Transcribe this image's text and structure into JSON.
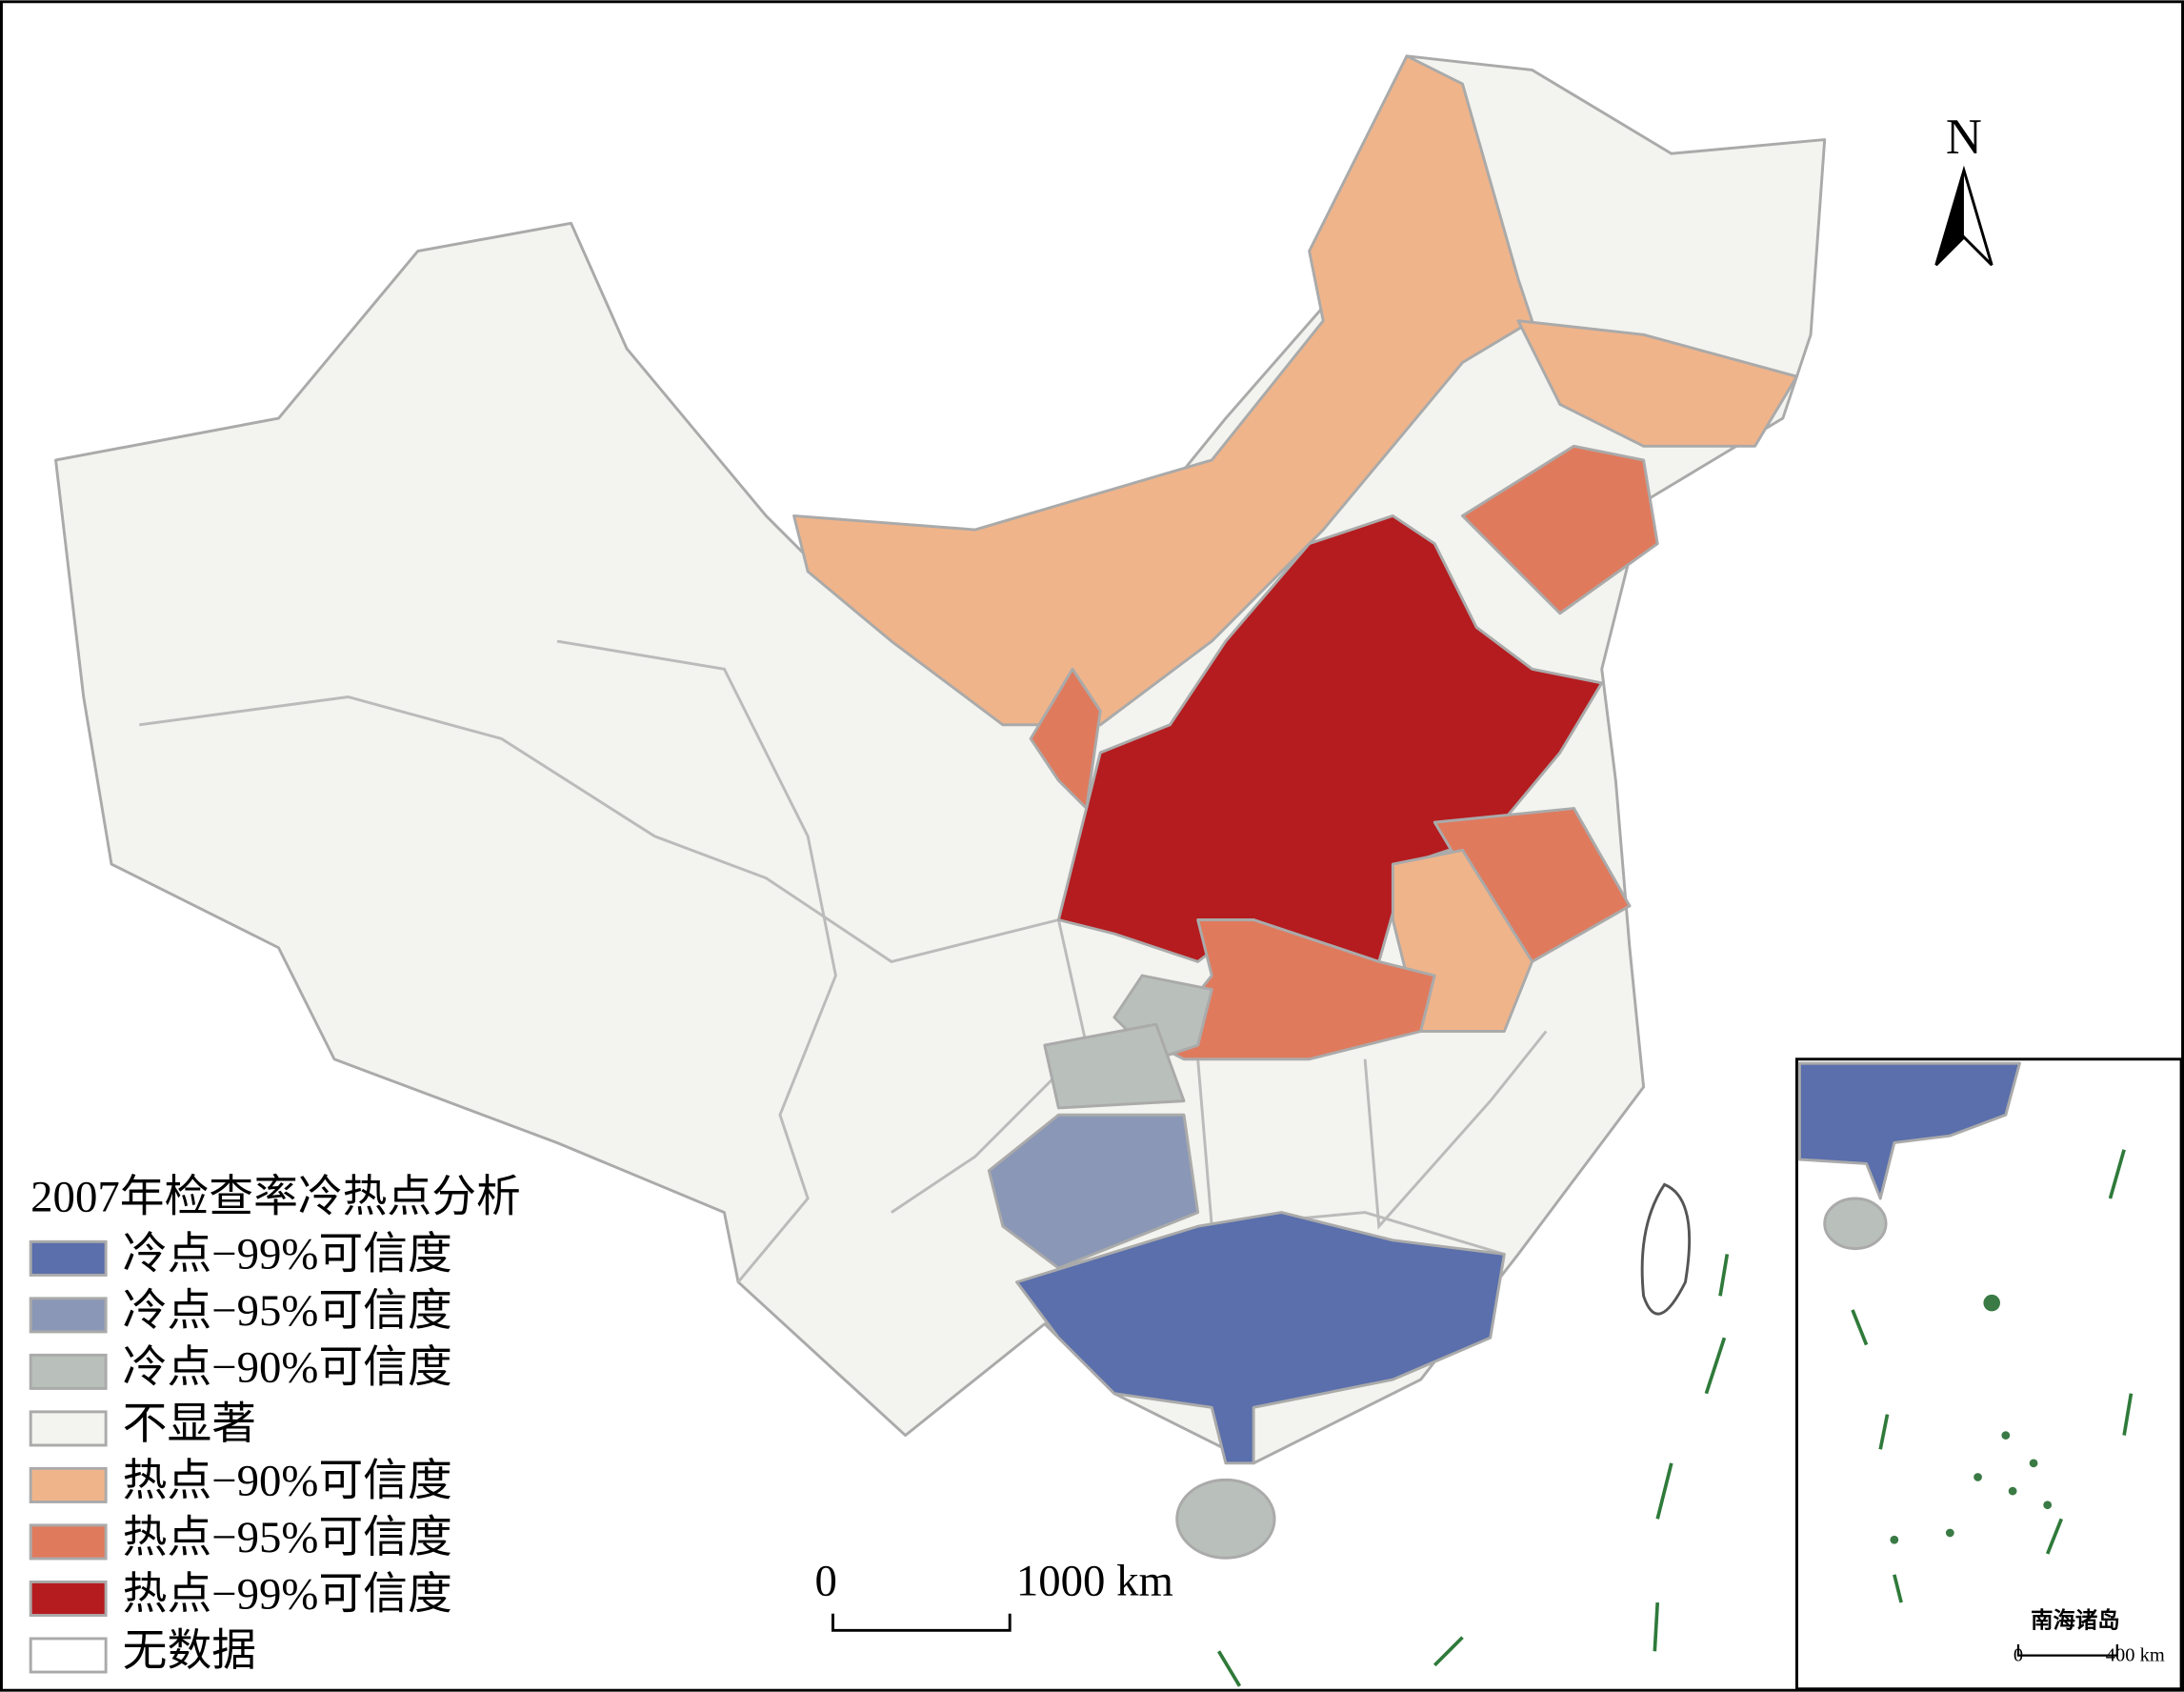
{
  "legend": {
    "title": "2007年检查率冷热点分析",
    "items": [
      {
        "label": "冷点−99%可信度",
        "color": "#5a6fab"
      },
      {
        "label": "冷点−95%可信度",
        "color": "#8a97b6"
      },
      {
        "label": "冷点−90%可信度",
        "color": "#b9bfba"
      },
      {
        "label": "不显著",
        "color": "#f3f3ef"
      },
      {
        "label": "热点−90%可信度",
        "color": "#f0b48a"
      },
      {
        "label": "热点−95%可信度",
        "color": "#e07a5d"
      },
      {
        "label": "热点−99%可信度",
        "color": "#b51c1f"
      },
      {
        "label": "无数据",
        "color": "#ffffff"
      }
    ]
  },
  "north": "N",
  "scale_bar": {
    "start": "0",
    "end": "1000 km"
  },
  "inset": {
    "title": "南海诸岛",
    "scale_start": "0",
    "scale_end": "400 km"
  }
}
